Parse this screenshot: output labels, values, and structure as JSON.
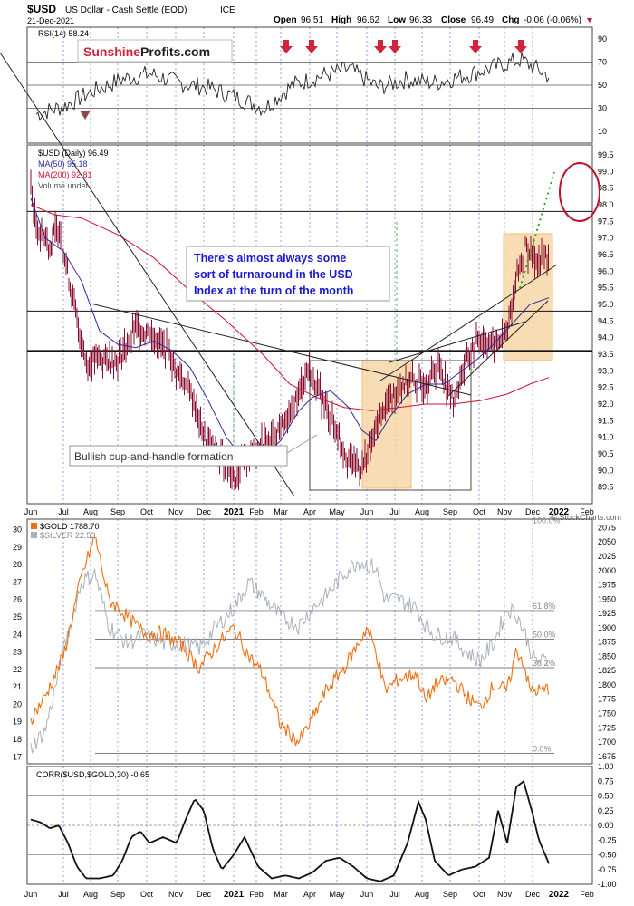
{
  "header": {
    "symbol": "$USD",
    "name": "US Dollar - Cash Settle (EOD)",
    "exchange": "ICE",
    "date": "21-Dec-2021",
    "open_label": "Open",
    "open": "96.51",
    "high_label": "High",
    "high": "96.62",
    "low_label": "Low",
    "low": "96.33",
    "close_label": "Close",
    "close": "96.49",
    "chg_label": "Chg",
    "chg": "-0.06 (-0.06%)",
    "watermark": "© StockCharts.com"
  },
  "logo": {
    "part1": "Sunshine",
    "part2": "Profits.com"
  },
  "colors": {
    "price_bar": "#8a0d2e",
    "ma50": "#2a2aa0",
    "ma200": "#d01030",
    "gold": "#f07010",
    "silver": "#a8b0b8",
    "arrow": "#d0243c",
    "highlight_fill": "#f7d6a8",
    "highlight_stroke": "#f0a040",
    "dashed_blue": "#3030d0",
    "dashed_green": "#22aa22",
    "annotation_text": "#1a1ad0"
  },
  "chart_data": [
    {
      "type": "line",
      "panel": "rsi",
      "legend": "RSI(14) 58.24",
      "ylim": [
        0,
        100
      ],
      "y_ticks": [
        10,
        30,
        50,
        70,
        90
      ],
      "reference_lines": [
        30,
        50,
        70
      ],
      "x_months": [
        "2021-06",
        "2021-07",
        "2021-08",
        "2021-09",
        "2021-10",
        "2021-11",
        "2021-12",
        "2021-01",
        "2021-02",
        "2021-03",
        "2021-04",
        "2021-05",
        "2021-06",
        "2021-07",
        "2021-08",
        "2021-09",
        "2021-10",
        "2021-11",
        "2021-12"
      ],
      "values": [
        25,
        32,
        45,
        55,
        60,
        52,
        48,
        40,
        30,
        50,
        58,
        64,
        48,
        55,
        52,
        58,
        65,
        72,
        58
      ]
    },
    {
      "type": "line",
      "panel": "usd",
      "series": [
        {
          "name": "$USD (Daily) 96.49",
          "style": "bars"
        },
        {
          "name": "MA(50) 95.18"
        },
        {
          "name": "MA(200) 92.81"
        },
        {
          "name": "Volume undef"
        }
      ],
      "ylim": [
        89,
        99.8
      ],
      "y_ticks": [
        89.5,
        90.0,
        90.5,
        91.0,
        91.5,
        92.0,
        92.5,
        93.0,
        93.5,
        94.0,
        94.5,
        95.0,
        95.5,
        96.0,
        96.5,
        97.0,
        97.5,
        98.0,
        98.5,
        99.0,
        99.5
      ],
      "horizontal_lines": [
        97.8,
        94.8,
        93.6
      ],
      "annotations": [
        "There's almost always some",
        "sort of turnaround in the USD",
        "Index at the turn of the month"
      ],
      "pattern_label": "Bullish cup-and-handle formation"
    },
    {
      "type": "line",
      "panel": "gold-silver",
      "series": [
        {
          "name": "$GOLD 1788.70"
        },
        {
          "name": "$SILVER 22.53"
        }
      ],
      "y_left_ticks": [
        17,
        18,
        19,
        20,
        21,
        22,
        23,
        24,
        25,
        26,
        27,
        28,
        29,
        30
      ],
      "y_right_ticks": [
        1675,
        1700,
        1725,
        1750,
        1775,
        1800,
        1825,
        1850,
        1875,
        1900,
        1925,
        1950,
        1975,
        2000,
        2025,
        2050,
        2075
      ],
      "fib_levels": [
        {
          "label": "100.0%",
          "value": 2080
        },
        {
          "label": "61.8%",
          "value": 1930
        },
        {
          "label": "50.0%",
          "value": 1880
        },
        {
          "label": "38.2%",
          "value": 1830
        },
        {
          "label": "0.0%",
          "value": 1680
        }
      ]
    },
    {
      "type": "line",
      "panel": "corr",
      "legend": "CORR($USD,$GOLD,30) -0.65",
      "ylim": [
        -1,
        1
      ],
      "y_ticks": [
        1.0,
        0.75,
        0.5,
        0.25,
        0.0,
        -0.25,
        -0.5,
        -0.75,
        -1.0
      ],
      "reference_line": 0
    }
  ],
  "x_axis_labels": [
    "Jun",
    "Jul",
    "Aug",
    "Sep",
    "Oct",
    "Nov",
    "Dec",
    "2021",
    "Feb",
    "Mar",
    "Apr",
    "May",
    "Jun",
    "Jul",
    "Aug",
    "Sep",
    "Oct",
    "Nov",
    "Dec",
    "2022",
    "Feb"
  ]
}
